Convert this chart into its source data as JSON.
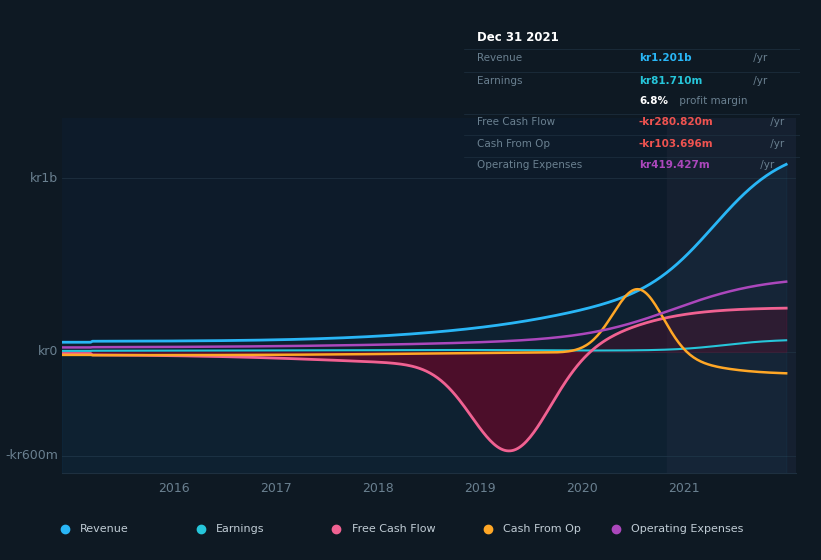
{
  "bg_color": "#0e1923",
  "plot_bg_color": "#0d1b2a",
  "highlight_bg": "#152030",
  "ylabel_top": "kr1b",
  "ylabel_bottom": "-kr600m",
  "ylabel_zero": "kr0",
  "x_ticks": [
    2016,
    2017,
    2018,
    2019,
    2020,
    2021
  ],
  "ylim_min": -700000000,
  "ylim_max": 1350000000,
  "highlight_x_start": 2020.83,
  "x_min": 2014.9,
  "x_max": 2022.1,
  "info_box": {
    "date": "Dec 31 2021",
    "revenue_label": "Revenue",
    "revenue_value": "kr1.201b",
    "earnings_label": "Earnings",
    "earnings_value": "kr81.710m",
    "profit_margin_pct": "6.8%",
    "profit_margin_text": " profit margin",
    "fcf_label": "Free Cash Flow",
    "fcf_value": "-kr280.820m",
    "cashop_label": "Cash From Op",
    "cashop_value": "-kr103.696m",
    "opex_label": "Operating Expenses",
    "opex_value": "kr419.427m",
    "yr_text": " /yr"
  },
  "revenue_color": "#29b6f6",
  "earnings_color": "#26c6da",
  "fcf_color": "#f06292",
  "cashop_color": "#ffa726",
  "opex_color": "#ab47bc",
  "fcf_fill_color": "#6a0020",
  "revenue_value_color": "#29b6f6",
  "earnings_value_color": "#26c6da",
  "fcf_value_color": "#ef5350",
  "cashop_value_color": "#ef5350",
  "opex_value_color": "#ab47bc",
  "grid_color": "#1e3040",
  "tick_color": "#6a8090",
  "label_color": "#6a8090",
  "box_bg": "#040d14",
  "box_border": "#1e3040",
  "legend": [
    {
      "label": "Revenue",
      "color": "#29b6f6"
    },
    {
      "label": "Earnings",
      "color": "#26c6da"
    },
    {
      "label": "Free Cash Flow",
      "color": "#f06292"
    },
    {
      "label": "Cash From Op",
      "color": "#ffa726"
    },
    {
      "label": "Operating Expenses",
      "color": "#ab47bc"
    }
  ],
  "legend_bg": "#0d1921"
}
